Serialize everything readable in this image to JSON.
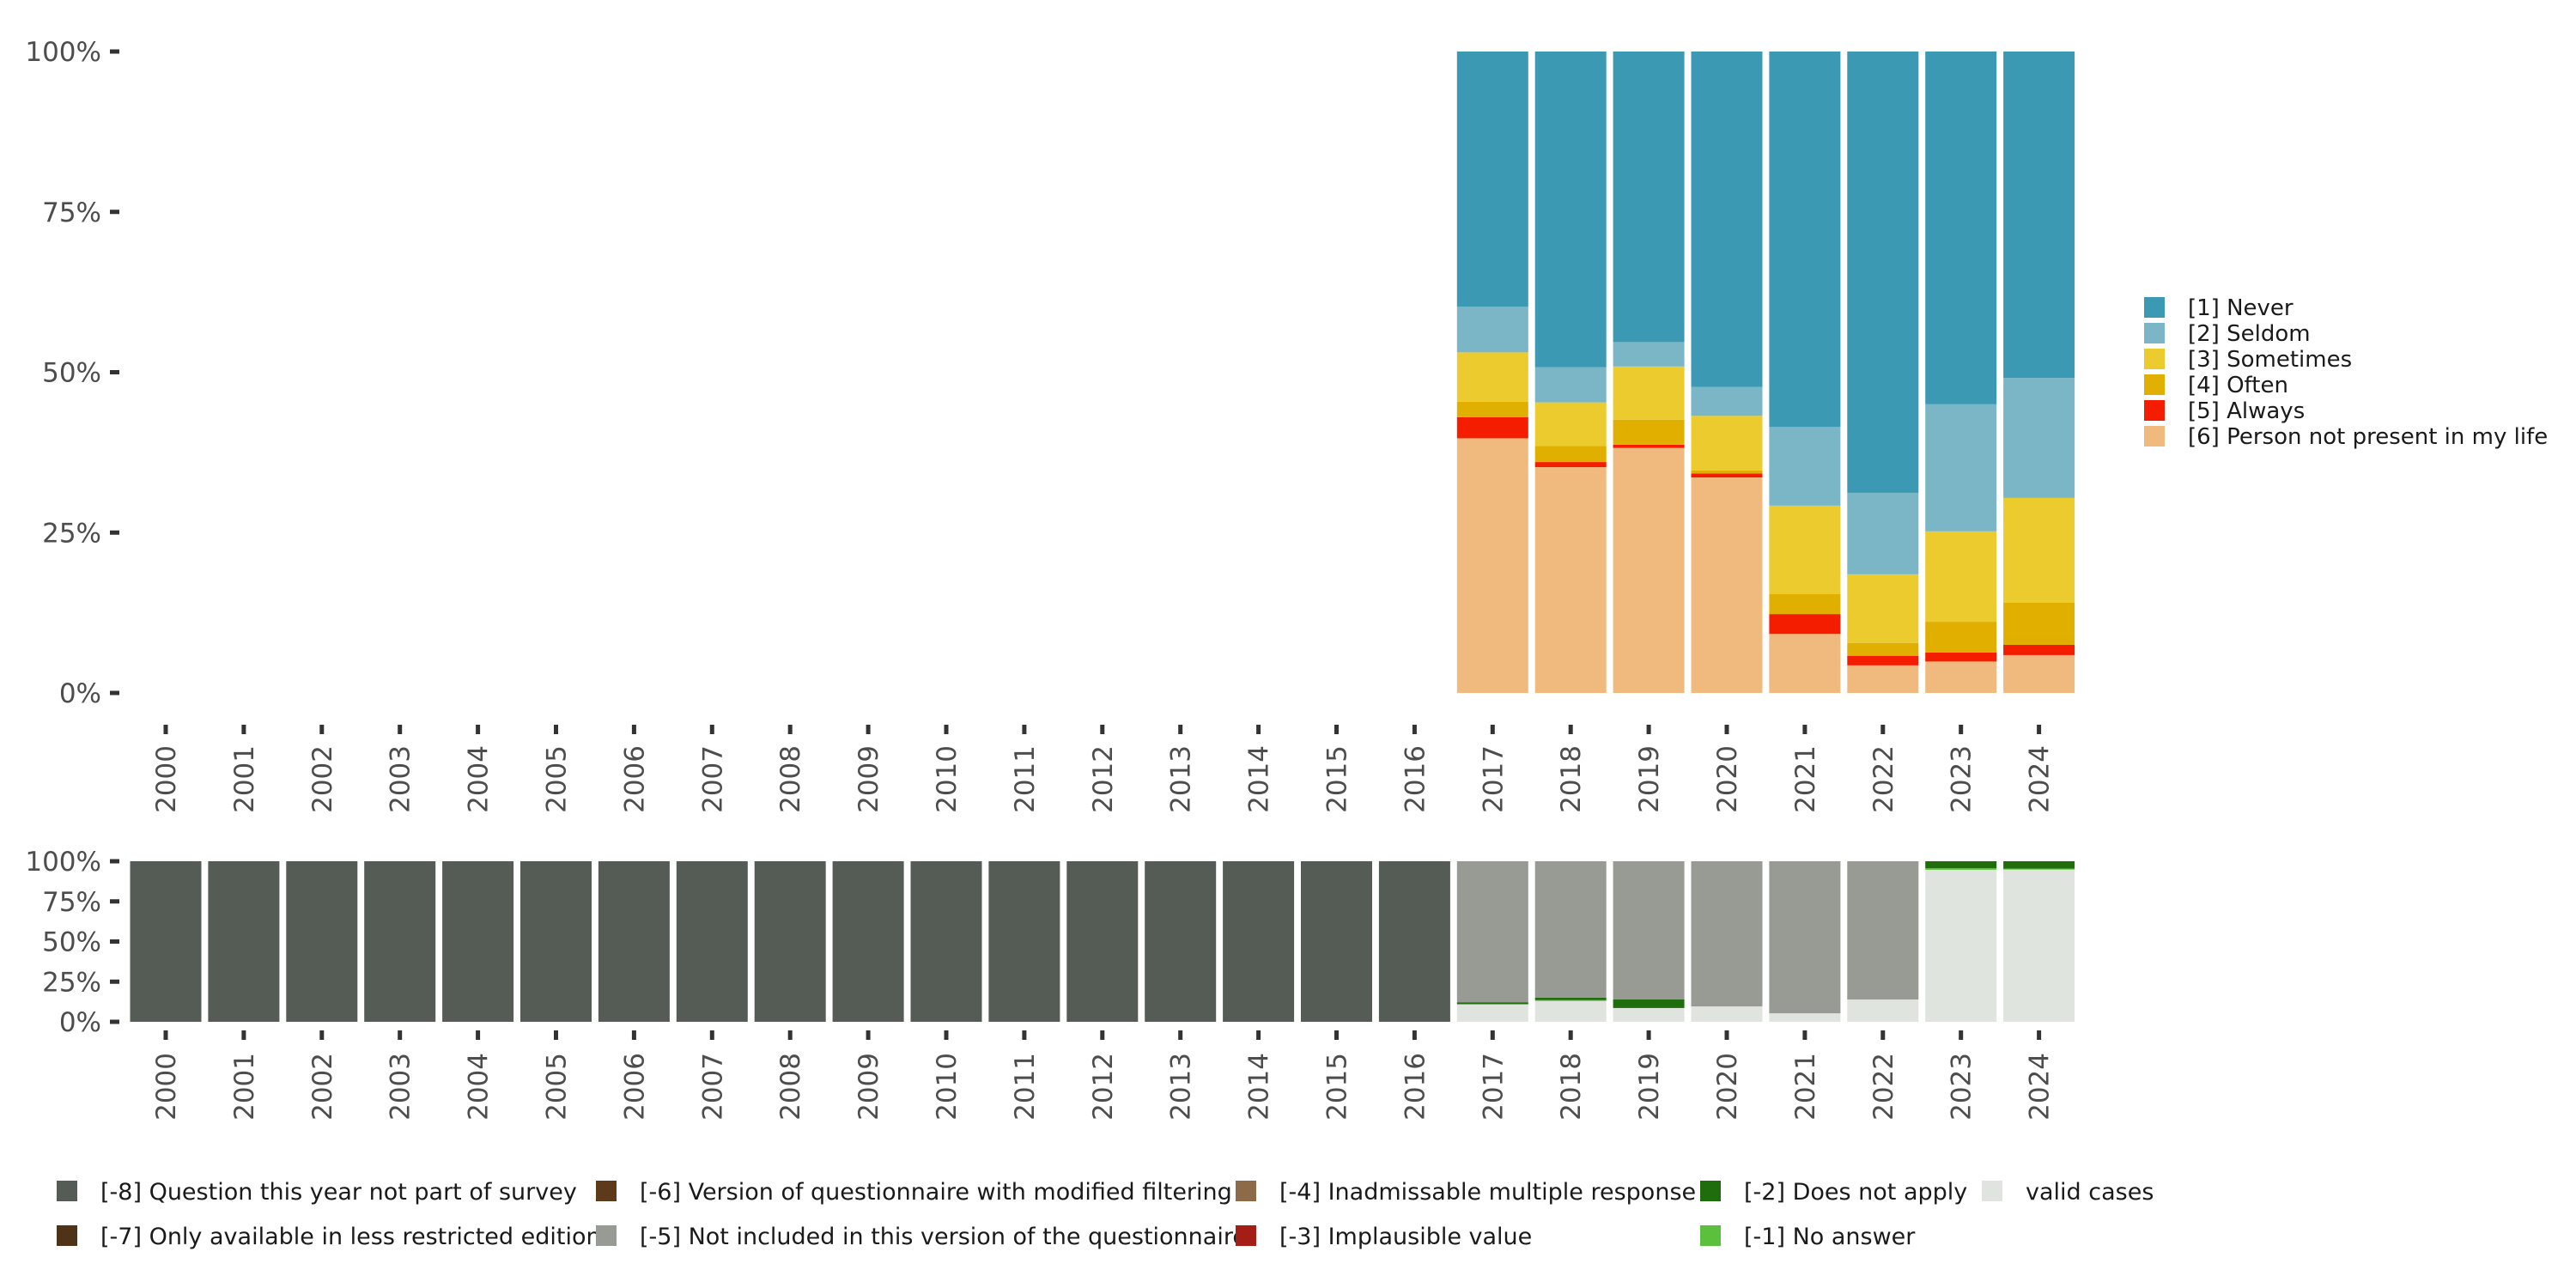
{
  "chart_data": [
    {
      "type": "bar",
      "stacked": true,
      "title": "",
      "xlabel": "",
      "ylabel": "",
      "ylim": [
        0,
        100
      ],
      "y_ticks": [
        "0%",
        "25%",
        "50%",
        "75%",
        "100%"
      ],
      "y_tick_values": [
        0,
        25,
        50,
        75,
        100
      ],
      "grid": false,
      "legend_position": "right",
      "categories": [
        "2000",
        "2001",
        "2002",
        "2003",
        "2004",
        "2005",
        "2006",
        "2007",
        "2008",
        "2009",
        "2010",
        "2011",
        "2012",
        "2013",
        "2014",
        "2015",
        "2016",
        "2017",
        "2018",
        "2019",
        "2020",
        "2021",
        "2022",
        "2023",
        "2024"
      ],
      "series_order_bottom_to_top": [
        "[6] Person not present in my life",
        "[5] Always",
        "[4] Often",
        "[3] Sometimes",
        "[2] Seldom",
        "[1] Never"
      ],
      "series": [
        {
          "name": "[1] Never",
          "color": "#3C99B3",
          "values": [
            null,
            null,
            null,
            null,
            null,
            null,
            null,
            null,
            null,
            null,
            null,
            null,
            null,
            null,
            null,
            null,
            null,
            39.8,
            49.2,
            45.3,
            52.3,
            58.5,
            68.8,
            55.0,
            50.9
          ]
        },
        {
          "name": "[2] Seldom",
          "color": "#7AB6C5",
          "values": [
            null,
            null,
            null,
            null,
            null,
            null,
            null,
            null,
            null,
            null,
            null,
            null,
            null,
            null,
            null,
            null,
            null,
            7.1,
            5.5,
            3.8,
            4.5,
            12.3,
            12.7,
            19.8,
            18.7
          ]
        },
        {
          "name": "[3] Sometimes",
          "color": "#EBCB2E",
          "values": [
            null,
            null,
            null,
            null,
            null,
            null,
            null,
            null,
            null,
            null,
            null,
            null,
            null,
            null,
            null,
            null,
            null,
            7.7,
            6.8,
            8.3,
            8.5,
            13.8,
            10.7,
            14.1,
            16.3
          ]
        },
        {
          "name": "[4] Often",
          "color": "#E0AF00",
          "values": [
            null,
            null,
            null,
            null,
            null,
            null,
            null,
            null,
            null,
            null,
            null,
            null,
            null,
            null,
            null,
            null,
            null,
            2.4,
            2.5,
            3.9,
            0.5,
            3.1,
            2.0,
            4.8,
            6.6
          ]
        },
        {
          "name": "[5] Always",
          "color": "#F41D00",
          "values": [
            null,
            null,
            null,
            null,
            null,
            null,
            null,
            null,
            null,
            null,
            null,
            null,
            null,
            null,
            null,
            null,
            null,
            3.3,
            0.8,
            0.5,
            0.6,
            3.1,
            1.5,
            1.4,
            1.6
          ]
        },
        {
          "name": "[6] Person not present in my life",
          "color": "#F0BA7E",
          "values": [
            null,
            null,
            null,
            null,
            null,
            null,
            null,
            null,
            null,
            null,
            null,
            null,
            null,
            null,
            null,
            null,
            null,
            39.7,
            35.2,
            38.2,
            33.6,
            9.2,
            4.3,
            4.9,
            5.9
          ]
        }
      ]
    },
    {
      "type": "bar",
      "stacked": true,
      "title": "",
      "xlabel": "",
      "ylabel": "",
      "ylim": [
        0,
        100
      ],
      "y_ticks": [
        "0%",
        "25%",
        "50%",
        "75%",
        "100%"
      ],
      "y_tick_values": [
        0,
        25,
        50,
        75,
        100
      ],
      "grid": false,
      "legend_position": "bottom",
      "categories": [
        "2000",
        "2001",
        "2002",
        "2003",
        "2004",
        "2005",
        "2006",
        "2007",
        "2008",
        "2009",
        "2010",
        "2011",
        "2012",
        "2013",
        "2014",
        "2015",
        "2016",
        "2017",
        "2018",
        "2019",
        "2020",
        "2021",
        "2022",
        "2023",
        "2024"
      ],
      "series_order_bottom_to_top": [
        "valid cases",
        "[-1] No answer",
        "[-2] Does not apply",
        "[-3] Implausible value",
        "[-4] Inadmissable multiple response",
        "[-5] Not included in this version of the questionnaire",
        "[-6] Version of questionnaire with modified filtering",
        "[-7] Only available in less restricted edition",
        "[-8] Question this year not part of survey"
      ],
      "series": [
        {
          "name": "valid cases",
          "color": "#E0E4DF",
          "values": [
            0,
            0,
            0,
            0,
            0,
            0,
            0,
            0,
            0,
            0,
            0,
            0,
            0,
            0,
            0,
            0,
            0,
            10.7,
            13.0,
            8.6,
            9.6,
            5.3,
            13.9,
            94.7,
            94.8
          ]
        },
        {
          "name": "[-1] No answer",
          "color": "#5BC03E",
          "values": [
            0,
            0,
            0,
            0,
            0,
            0,
            0,
            0,
            0,
            0,
            0,
            0,
            0,
            0,
            0,
            0,
            0,
            0.5,
            0.5,
            0,
            0,
            0,
            0,
            1.0,
            0.6
          ]
        },
        {
          "name": "[-2] Does not apply",
          "color": "#206D0E",
          "values": [
            0,
            0,
            0,
            0,
            0,
            0,
            0,
            0,
            0,
            0,
            0,
            0,
            0,
            0,
            0,
            0,
            0,
            1.0,
            1.5,
            5.3,
            0,
            0,
            0,
            4.3,
            4.6
          ]
        },
        {
          "name": "[-3] Implausible value",
          "color": "#A51D17",
          "values": [
            0,
            0,
            0,
            0,
            0,
            0,
            0,
            0,
            0,
            0,
            0,
            0,
            0,
            0,
            0,
            0,
            0,
            0,
            0,
            0,
            0,
            0,
            0,
            0,
            0
          ]
        },
        {
          "name": "[-4] Inadmissable multiple response",
          "color": "#8E6B48",
          "values": [
            0,
            0,
            0,
            0,
            0,
            0,
            0,
            0,
            0,
            0,
            0,
            0,
            0,
            0,
            0,
            0,
            0,
            0,
            0,
            0,
            0,
            0,
            0,
            0,
            0
          ]
        },
        {
          "name": "[-5] Not included in this version of the questionnaire",
          "color": "#979B94",
          "values": [
            0,
            0,
            0,
            0,
            0,
            0,
            0,
            0,
            0,
            0,
            0,
            0,
            0,
            0,
            0,
            0,
            0,
            87.8,
            85.0,
            86.1,
            90.4,
            94.7,
            86.1,
            0,
            0
          ]
        },
        {
          "name": "[-6] Version of questionnaire with modified filtering",
          "color": "#5C3A1A",
          "values": [
            0,
            0,
            0,
            0,
            0,
            0,
            0,
            0,
            0,
            0,
            0,
            0,
            0,
            0,
            0,
            0,
            0,
            0,
            0,
            0,
            0,
            0,
            0,
            0,
            0
          ]
        },
        {
          "name": "[-7] Only available in less restricted edition",
          "color": "#4F3319",
          "values": [
            0,
            0,
            0,
            0,
            0,
            0,
            0,
            0,
            0,
            0,
            0,
            0,
            0,
            0,
            0,
            0,
            0,
            0,
            0,
            0,
            0,
            0,
            0,
            0,
            0
          ]
        },
        {
          "name": "[-8] Question this year not part of survey",
          "color": "#555B55",
          "values": [
            100,
            100,
            100,
            100,
            100,
            100,
            100,
            100,
            100,
            100,
            100,
            100,
            100,
            100,
            100,
            100,
            100,
            0,
            0,
            0,
            0,
            0,
            0,
            0,
            0
          ]
        }
      ]
    }
  ],
  "legend_top": [
    {
      "label": "[1] Never",
      "color": "#3C99B3"
    },
    {
      "label": "[2] Seldom",
      "color": "#7AB6C5"
    },
    {
      "label": "[3] Sometimes",
      "color": "#EBCB2E"
    },
    {
      "label": "[4] Often",
      "color": "#E0AF00"
    },
    {
      "label": "[5] Always",
      "color": "#F41D00"
    },
    {
      "label": "[6] Person not present in my life",
      "color": "#F0BA7E"
    }
  ],
  "legend_bottom": [
    [
      {
        "label": "[-8] Question this year not part of survey",
        "color": "#555B55"
      },
      {
        "label": "[-7] Only available in less restricted edition",
        "color": "#4F3319"
      }
    ],
    [
      {
        "label": "[-6] Version of questionnaire with modified filtering",
        "color": "#5C3A1A"
      },
      {
        "label": "[-5] Not included in this version of the questionnaire",
        "color": "#979B94"
      }
    ],
    [
      {
        "label": "[-4] Inadmissable multiple response",
        "color": "#8E6B48"
      },
      {
        "label": "[-3] Implausible value",
        "color": "#A51D17"
      }
    ],
    [
      {
        "label": "[-2] Does not apply",
        "color": "#206D0E"
      },
      {
        "label": "[-1] No answer",
        "color": "#5BC03E"
      }
    ],
    [
      {
        "label": "valid cases",
        "color": "#E0E4DF"
      }
    ]
  ]
}
